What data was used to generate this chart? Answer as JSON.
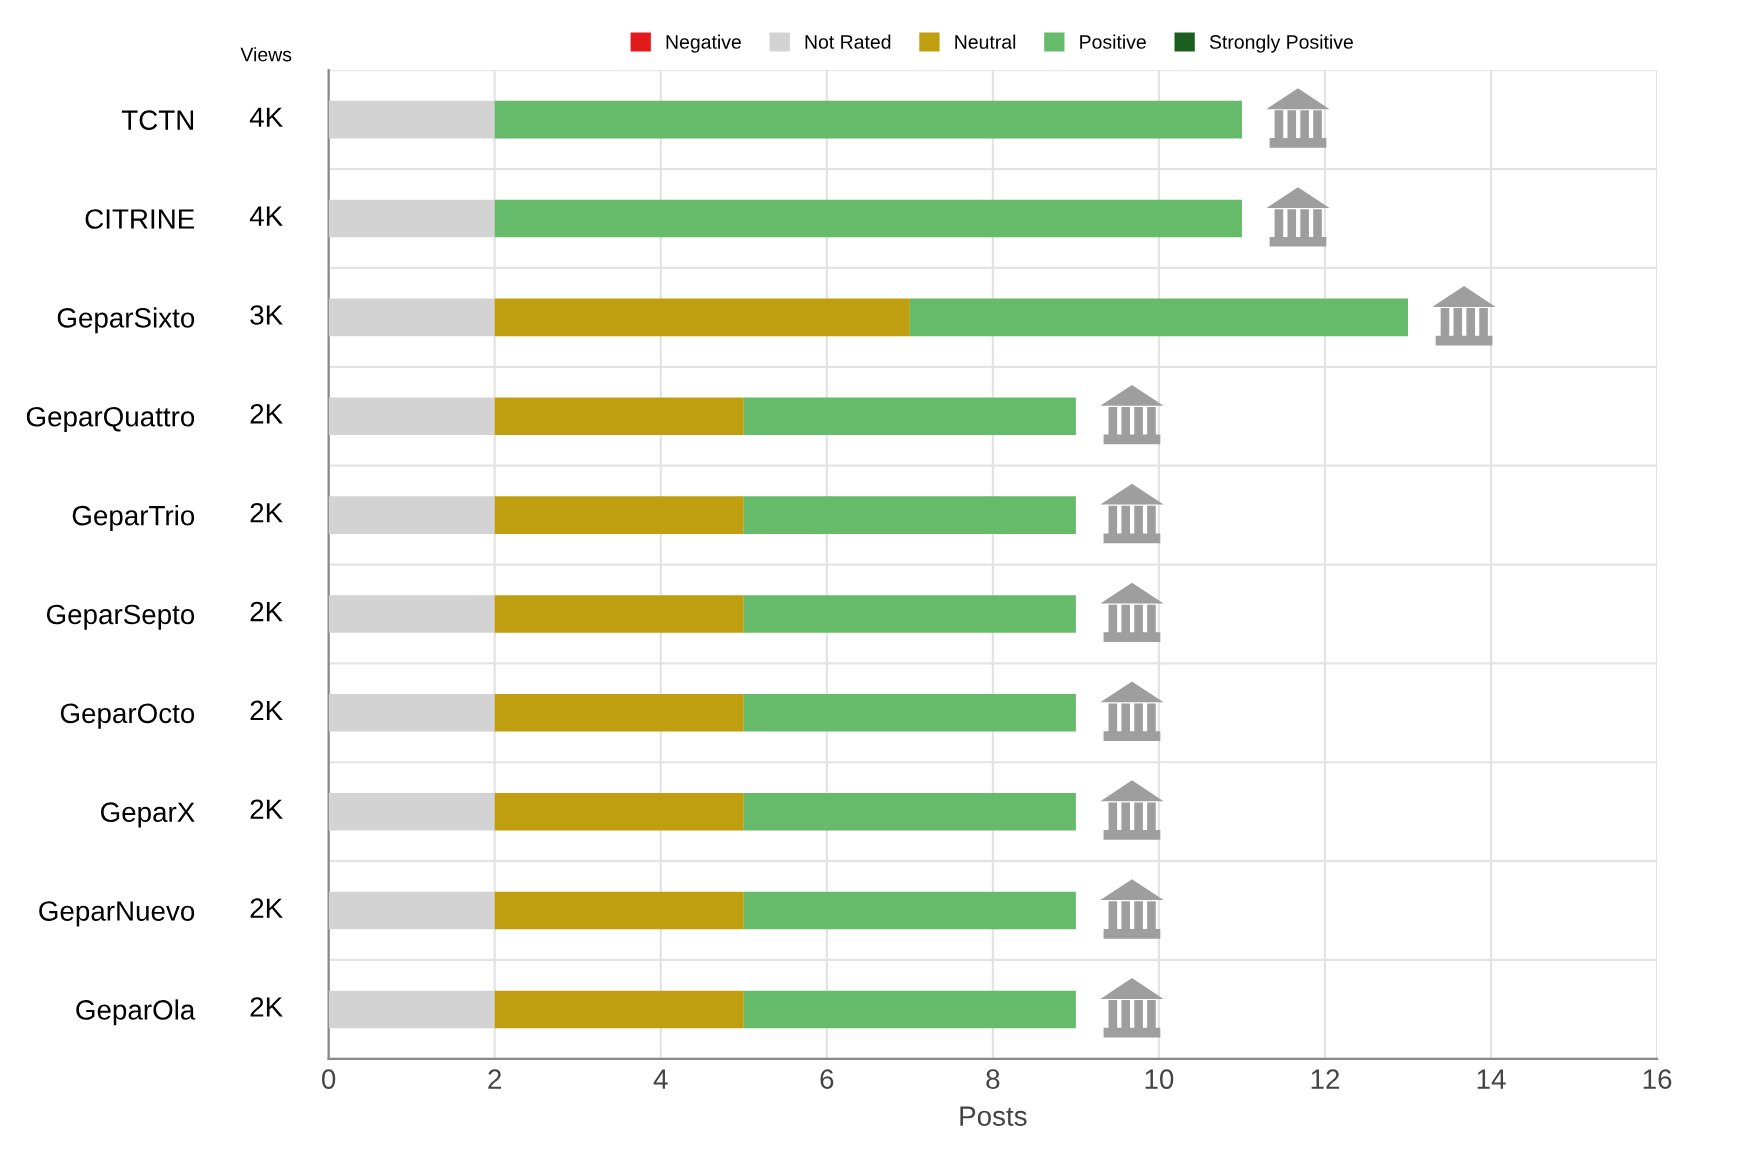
{
  "chart_data": {
    "type": "bar",
    "orientation": "horizontal",
    "stacked": true,
    "xlabel": "Posts",
    "ylabel": "Views",
    "categories": [
      "TCTN",
      "CITRINE",
      "GeparSixto",
      "GeparQuattro",
      "GeparTrio",
      "GeparSepto",
      "GeparOcto",
      "GeparX",
      "GeparNuevo",
      "GeparOla"
    ],
    "series": [
      {
        "name": "Negative",
        "color": "#e31a1c",
        "values": [
          null,
          null,
          null,
          null,
          null,
          null,
          null,
          null,
          null,
          null
        ]
      },
      {
        "name": "Not Rated",
        "color": "#d3d3d3",
        "values": [
          2,
          2,
          2,
          2,
          2,
          2,
          2,
          2,
          2,
          2
        ]
      },
      {
        "name": "Neutral",
        "color": "#bf9f0f",
        "values": [
          null,
          null,
          5,
          3,
          3,
          3,
          3,
          3,
          3,
          3
        ]
      },
      {
        "name": "Positive",
        "color": "#66bb6a",
        "values": [
          9,
          9,
          6,
          4,
          4,
          4,
          4,
          4,
          4,
          4
        ]
      },
      {
        "name": "Strongly Positive",
        "color": "#1b5e20",
        "values": [
          null,
          null,
          null,
          null,
          null,
          null,
          null,
          null,
          null,
          null
        ]
      }
    ],
    "annotations": [
      "4K",
      "4K",
      "3K",
      "2K",
      "2K",
      "2K",
      "2K",
      "2K",
      "2K",
      "2K"
    ],
    "xlim": [
      0,
      16
    ],
    "xticks": [
      0,
      2,
      4,
      6,
      8,
      10,
      12,
      14,
      16
    ],
    "grid": true,
    "legend": "top"
  }
}
